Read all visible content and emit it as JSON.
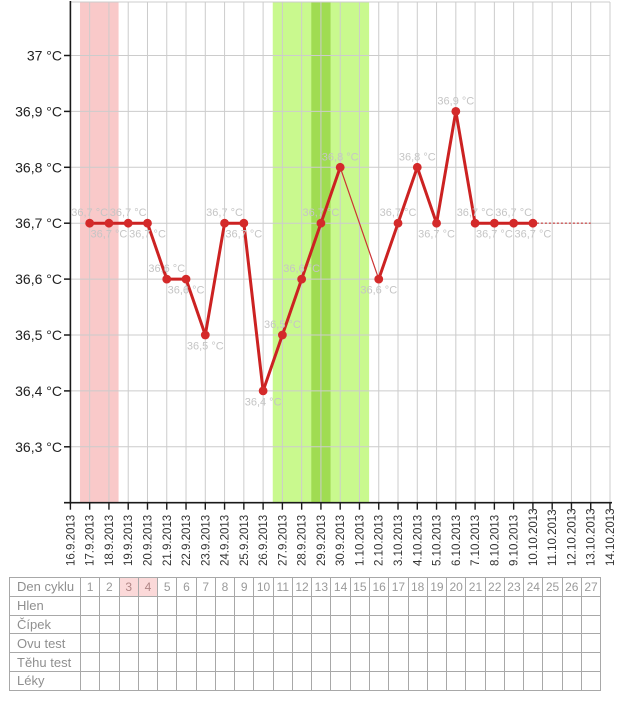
{
  "chart_data": {
    "type": "line",
    "title": "",
    "xlabel": "",
    "ylabel": "",
    "grid": true,
    "x": [
      "16.9.2013",
      "17.9.2013",
      "18.9.2013",
      "19.9.2013",
      "20.9.2013",
      "21.9.2013",
      "22.9.2013",
      "23.9.2013",
      "24.9.2013",
      "25.9.2013",
      "26.9.2013",
      "27.9.2013",
      "28.9.2013",
      "29.9.2013",
      "30.9.2013",
      "1.10.2013",
      "2.10.2013",
      "3.10.2013",
      "4.10.2013",
      "5.10.2013",
      "6.10.2013",
      "7.10.2013",
      "8.10.2013",
      "9.10.2013",
      "10.10.2013",
      "11.10.2013",
      "12.10.2013",
      "13.10.2013",
      "14.10.2013"
    ],
    "ylim": [
      36.2,
      37.1
    ],
    "yticks": [
      {
        "value": 37.0,
        "label": "37 °C"
      },
      {
        "value": 36.9,
        "label": "36,9 °C"
      },
      {
        "value": 36.8,
        "label": "36,8 °C"
      },
      {
        "value": 36.7,
        "label": "36,7 °C"
      },
      {
        "value": 36.6,
        "label": "36,6 °C"
      },
      {
        "value": 36.5,
        "label": "36,5 °C"
      },
      {
        "value": 36.4,
        "label": "36,4 °C"
      },
      {
        "value": 36.3,
        "label": "36,3 °C"
      }
    ],
    "series": [
      {
        "name": "temperature",
        "color": "#cc2222",
        "points": [
          {
            "date": "17.9.2013",
            "temp": 36.7,
            "label": "36,7 °C",
            "label_pos": "above"
          },
          {
            "date": "18.9.2013",
            "temp": 36.7,
            "label": "36,7 °C",
            "label_pos": "below"
          },
          {
            "date": "19.9.2013",
            "temp": 36.7,
            "label": "36,7 °C",
            "label_pos": "above"
          },
          {
            "date": "20.9.2013",
            "temp": 36.7,
            "label": "36,7 °C",
            "label_pos": "below"
          },
          {
            "date": "21.9.2013",
            "temp": 36.6,
            "label": "36,6 °C",
            "label_pos": "above"
          },
          {
            "date": "22.9.2013",
            "temp": 36.6,
            "label": "36,6 °C",
            "label_pos": "below"
          },
          {
            "date": "23.9.2013",
            "temp": 36.5,
            "label": "36,5 °C",
            "label_pos": "below"
          },
          {
            "date": "24.9.2013",
            "temp": 36.7,
            "label": "36,7 °C",
            "label_pos": "above"
          },
          {
            "date": "25.9.2013",
            "temp": 36.7,
            "label": "36,7 °C",
            "label_pos": "below"
          },
          {
            "date": "26.9.2013",
            "temp": 36.4,
            "label": "36,4 °C",
            "label_pos": "below"
          },
          {
            "date": "27.9.2013",
            "temp": 36.5,
            "label": "36,5 °C",
            "label_pos": "above"
          },
          {
            "date": "28.9.2013",
            "temp": 36.6,
            "label": "36,6 °C",
            "label_pos": "above"
          },
          {
            "date": "29.9.2013",
            "temp": 36.7,
            "label": "36,7 °C",
            "label_pos": "above"
          },
          {
            "date": "30.9.2013",
            "temp": 36.8,
            "label": "36,8 °C",
            "label_pos": "above"
          },
          {
            "date": "2.10.2013",
            "temp": 36.6,
            "label": "36,6 °C",
            "label_pos": "below"
          },
          {
            "date": "3.10.2013",
            "temp": 36.7,
            "label": "36,7 °C",
            "label_pos": "above"
          },
          {
            "date": "4.10.2013",
            "temp": 36.8,
            "label": "36,8 °C",
            "label_pos": "above"
          },
          {
            "date": "5.10.2013",
            "temp": 36.7,
            "label": "36,7 °C",
            "label_pos": "below"
          },
          {
            "date": "6.10.2013",
            "temp": 36.9,
            "label": "36,9 °C",
            "label_pos": "above"
          },
          {
            "date": "7.10.2013",
            "temp": 36.7,
            "label": "36,7 °C",
            "label_pos": "above"
          },
          {
            "date": "8.10.2013",
            "temp": 36.7,
            "label": "36,7 °C",
            "label_pos": "below"
          },
          {
            "date": "9.10.2013",
            "temp": 36.7,
            "label": "36,7 °C",
            "label_pos": "above"
          },
          {
            "date": "10.10.2013",
            "temp": 36.7,
            "label": "36,7 °C",
            "label_pos": "below"
          }
        ]
      }
    ],
    "missing_dates": [
      "1.10.2013"
    ],
    "projection": {
      "from_date": "10.10.2013",
      "to_date": "13.10.2013",
      "temp": 36.7,
      "style": "dotted",
      "color": "#cc5555"
    },
    "bands": [
      {
        "name": "menstruation-band",
        "from": "17.9.2013",
        "to": "18.9.2013",
        "color": "#f9c9c9"
      },
      {
        "name": "fertile-band",
        "from": "27.9.2013",
        "to": "1.10.2013",
        "color": "#c9f98e"
      },
      {
        "name": "ovulation-band",
        "from": "29.9.2013",
        "to": "29.9.2013",
        "color": "#a0dc52"
      }
    ],
    "colors": {
      "grid": "#cccccc",
      "axis": "#1a1a1a",
      "point_fill": "#d42a2a",
      "point_label": "#c5c5c5",
      "ytick_label": "#222222",
      "date_label": "#333333"
    }
  },
  "table": {
    "row_labels": [
      "Den cyklu",
      "Hlen",
      "Čípek",
      "Ovu test",
      "Těhu test",
      "Léky"
    ],
    "day_numbers": [
      1,
      2,
      3,
      4,
      5,
      6,
      7,
      8,
      9,
      10,
      11,
      12,
      13,
      14,
      15,
      16,
      17,
      18,
      19,
      20,
      21,
      22,
      23,
      24,
      25,
      26,
      27
    ],
    "highlighted_days": [
      3,
      4
    ],
    "highlight_color": "#fbd9d9"
  }
}
